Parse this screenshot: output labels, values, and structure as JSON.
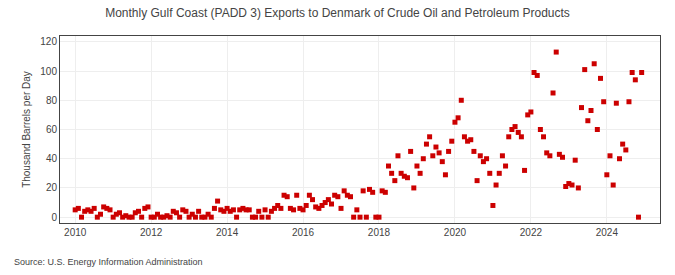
{
  "chart_data": {
    "type": "scatter",
    "title": "Monthly Gulf Coast (PADD 3) Exports to Denmark of Crude Oil and Petroleum Products",
    "ylabel": "Thousand Barrels per Day",
    "source": "Source: U.S. Energy Information Administration",
    "color": "#cc0000",
    "marker": "square",
    "grid": true,
    "xlim": [
      2009.6,
      2025.4
    ],
    "xticks": [
      2010,
      2012,
      2014,
      2016,
      2018,
      2020,
      2022,
      2024
    ],
    "ylim": [
      -4,
      124
    ],
    "yticks": [
      0,
      20,
      40,
      60,
      80,
      100,
      120
    ],
    "x": [
      2010.0,
      2010.083,
      2010.167,
      2010.25,
      2010.333,
      2010.417,
      2010.5,
      2010.583,
      2010.667,
      2010.75,
      2010.833,
      2010.917,
      2011.0,
      2011.083,
      2011.167,
      2011.25,
      2011.333,
      2011.417,
      2011.5,
      2011.583,
      2011.667,
      2011.75,
      2011.833,
      2011.917,
      2012.0,
      2012.083,
      2012.167,
      2012.25,
      2012.333,
      2012.417,
      2012.5,
      2012.583,
      2012.667,
      2012.75,
      2012.833,
      2012.917,
      2013.0,
      2013.083,
      2013.167,
      2013.25,
      2013.333,
      2013.417,
      2013.5,
      2013.583,
      2013.667,
      2013.75,
      2013.833,
      2013.917,
      2014.0,
      2014.083,
      2014.167,
      2014.25,
      2014.333,
      2014.417,
      2014.5,
      2014.583,
      2014.667,
      2014.75,
      2014.833,
      2014.917,
      2015.0,
      2015.083,
      2015.167,
      2015.25,
      2015.333,
      2015.417,
      2015.5,
      2015.583,
      2015.667,
      2015.75,
      2015.833,
      2015.917,
      2016.0,
      2016.083,
      2016.167,
      2016.25,
      2016.333,
      2016.417,
      2016.5,
      2016.583,
      2016.667,
      2016.75,
      2016.833,
      2016.917,
      2017.0,
      2017.083,
      2017.167,
      2017.25,
      2017.333,
      2017.417,
      2017.5,
      2017.583,
      2017.667,
      2017.75,
      2017.833,
      2017.917,
      2018.0,
      2018.083,
      2018.167,
      2018.25,
      2018.333,
      2018.417,
      2018.5,
      2018.583,
      2018.667,
      2018.75,
      2018.833,
      2018.917,
      2019.0,
      2019.083,
      2019.167,
      2019.25,
      2019.333,
      2019.417,
      2019.5,
      2019.583,
      2019.667,
      2019.75,
      2019.833,
      2019.917,
      2020.0,
      2020.083,
      2020.167,
      2020.25,
      2020.333,
      2020.417,
      2020.5,
      2020.583,
      2020.667,
      2020.75,
      2020.833,
      2020.917,
      2021.0,
      2021.083,
      2021.167,
      2021.25,
      2021.333,
      2021.417,
      2021.5,
      2021.583,
      2021.667,
      2021.75,
      2021.833,
      2021.917,
      2022.0,
      2022.083,
      2022.167,
      2022.25,
      2022.333,
      2022.417,
      2022.5,
      2022.583,
      2022.667,
      2022.75,
      2022.833,
      2022.917,
      2023.0,
      2023.083,
      2023.167,
      2023.25,
      2023.333,
      2023.417,
      2023.5,
      2023.583,
      2023.667,
      2023.75,
      2023.833,
      2023.917,
      2024.0,
      2024.083,
      2024.167,
      2024.25,
      2024.333,
      2024.417,
      2024.5,
      2024.583,
      2024.667,
      2024.75,
      2024.833,
      2024.917
    ],
    "values": [
      5,
      6,
      0,
      4,
      5,
      4,
      6,
      0,
      2,
      7,
      6,
      5,
      0,
      2,
      3,
      0,
      1,
      0,
      0,
      3,
      4,
      0,
      6,
      7,
      0,
      0,
      2,
      0,
      0,
      1,
      0,
      4,
      3,
      0,
      5,
      4,
      0,
      2,
      0,
      4,
      0,
      0,
      2,
      0,
      6,
      11,
      5,
      4,
      6,
      4,
      5,
      0,
      5,
      6,
      5,
      5,
      0,
      0,
      4,
      0,
      5,
      0,
      4,
      6,
      8,
      6,
      15,
      14,
      6,
      5,
      15,
      6,
      5,
      8,
      15,
      12,
      7,
      6,
      8,
      10,
      12,
      9,
      15,
      14,
      6,
      18,
      15,
      14,
      0,
      5,
      0,
      18,
      0,
      19,
      17,
      0,
      0,
      18,
      17,
      35,
      30,
      25,
      42,
      30,
      28,
      27,
      45,
      20,
      35,
      30,
      40,
      50,
      55,
      42,
      48,
      44,
      38,
      29,
      45,
      52,
      65,
      68,
      80,
      55,
      52,
      53,
      45,
      25,
      42,
      38,
      40,
      30,
      8,
      22,
      30,
      42,
      35,
      55,
      60,
      62,
      58,
      55,
      32,
      70,
      72,
      99,
      97,
      60,
      55,
      44,
      42,
      85,
      113,
      43,
      41,
      21,
      23,
      22,
      39,
      20,
      75,
      101,
      66,
      73,
      105,
      60,
      95,
      79,
      29,
      42,
      22,
      78,
      40,
      50,
      46,
      79,
      99,
      94,
      0,
      99
    ]
  }
}
